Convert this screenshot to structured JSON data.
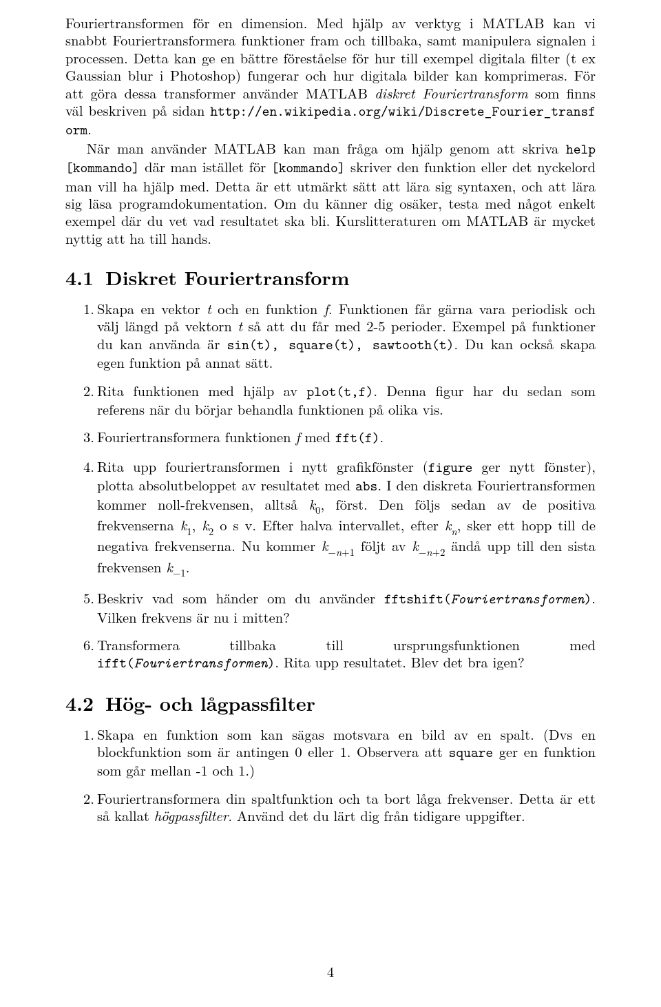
{
  "para1": {
    "t1": "Fouriertransformen för en dimension. Med hjälp av verktyg i MATLAB kan vi snabbt Fouriertransformera funktioner fram och tillbaka, samt manipulera signalen i processen. Detta kan ge en bättre föreståelse för hur till exempel digitala filter (t ex Gaussian blur i Photoshop) fungerar och hur digitala bilder kan komprimeras. För att göra dessa transformer använder MATLAB ",
    "it1": "diskret Fouriertransform",
    "t2": " som finns väl beskriven på sidan ",
    "tt1": "http://en.wikipedia.org/wiki/Discrete_Fourier_transform",
    "t3": "."
  },
  "para2": {
    "t1": "När man använder MATLAB kan man fråga om hjälp genom att skriva ",
    "tt1": "help [kommando]",
    "t2": " där man istället för ",
    "tt2": "[kommando]",
    "t3": " skriver den funktion eller det nyckelord man vill ha hjälp med. Detta är ett utmärkt sätt att lära sig syntaxen, och att lära sig läsa programdokumentation. Om du känner dig osäker, testa med något enkelt exempel där du vet vad resultatet ska bli. Kurslitteraturen om MATLAB är mycket nyttig att ha till hands."
  },
  "sec41": {
    "num": "4.1",
    "title": "Diskret Fouriertransform"
  },
  "li41_1": {
    "t1": "Skapa en vektor ",
    "m1": "t",
    "t2": " och en funktion ",
    "m2": "f",
    "t3": ". Funktionen får gärna vara periodisk och välj längd på vektorn ",
    "m3": "t",
    "t4": " så att du får med 2-5 perioder. Exempel på funktioner du kan använda är ",
    "tt1": "sin(t), square(t), sawtooth(t)",
    "t5": ". Du kan också skapa egen funktion på annat sätt."
  },
  "li41_2": {
    "t1": "Rita funktionen med hjälp av ",
    "tt1": "plot(t,f)",
    "t2": ". Denna figur har du sedan som referens när du börjar behandla funktionen på olika vis."
  },
  "li41_3": {
    "t1": "Fouriertransformera funktionen ",
    "m1": "f",
    "t2": " med ",
    "tt1": "fft(f)",
    "t3": "."
  },
  "li41_4": {
    "t1": "Rita upp fouriertransformen i nytt grafikfönster (",
    "tt1": "figure",
    "t2": " ger nytt fönster), plotta absolutbeloppet av resultatet med ",
    "tt2": "abs",
    "t3": ". I den diskreta Fouriertransformen kommer noll-frekvensen, alltså ",
    "m1": "k",
    "s1": "0",
    "t4": ", först. Den följs sedan av de positiva frekvenserna ",
    "m2": "k",
    "s2": "1",
    "t5": ", ",
    "m3": "k",
    "s3": "2",
    "t6": " o s v. Efter halva intervallet, efter ",
    "m4": "k",
    "s4": "n",
    "t7": ", sker ett hopp till de negativa frekvenserna. Nu kommer ",
    "m5": "k",
    "s5": "−n+1",
    "t8": " följt av ",
    "m6": "k",
    "s6": "−n+2",
    "t9": " ändå upp till den sista frekvensen ",
    "m7": "k",
    "s7": "−1",
    "t10": "."
  },
  "li41_5": {
    "t1": "Beskriv vad som händer om du använder ",
    "tt1": "fftshift(",
    "tti1": "Fouriertransformen",
    "tt2": ")",
    "t2": ". Vilken frekvens är nu i mitten?"
  },
  "li41_6": {
    "t1": "Transformera tillbaka till ursprungsfunktionen med ",
    "tt1": "ifft(",
    "tti1": "Fouriertransformen",
    "tt2": ")",
    "t2": ". Rita upp resultatet. Blev det bra igen?"
  },
  "sec42": {
    "num": "4.2",
    "title": "Hög- och lågpassfilter"
  },
  "li42_1": {
    "t1": "Skapa en funktion som kan sägas motsvara en bild av en spalt. (Dvs en blockfunktion som är antingen 0 eller 1. Observera att ",
    "tt1": "square",
    "t2": " ger en funktion som går mellan -1 och 1.)"
  },
  "li42_2": {
    "t1": "Fouriertransformera din spaltfunktion och ta bort låga frekvenser. Detta är ett så kallat ",
    "it1": "högpassfilter",
    "t2": ". Använd det du lärt dig från tidigare uppgifter."
  },
  "pagenum": "4"
}
